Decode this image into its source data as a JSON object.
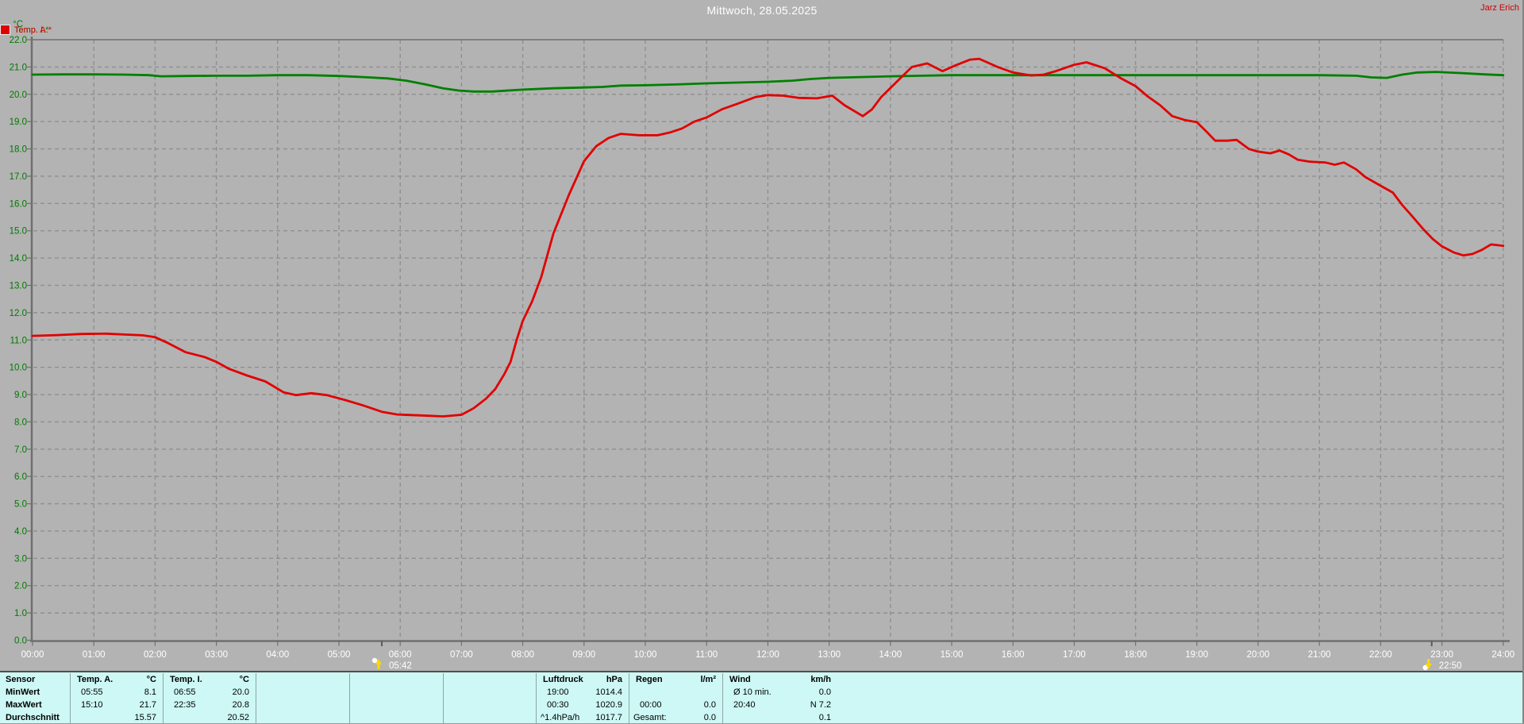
{
  "header": {
    "title": "Mittwoch, 28.05.2025",
    "author": "Jarz Erich"
  },
  "legend": [
    {
      "label": "Temp. I.*",
      "color": "#008000"
    },
    {
      "label": "Temp. A.*",
      "color": "#e10000"
    }
  ],
  "colors": {
    "background": "#b3b3b3",
    "grid": "#8f8f8f",
    "axis": "#6f6f6f",
    "y_labels": "#007800",
    "x_labels": "#ffffff",
    "title": "#ffffff",
    "author": "#cc0000",
    "table_background": "#cdf8f5",
    "marker_yellow": "#ffd700"
  },
  "chart_data": {
    "type": "line",
    "title": "Mittwoch, 28.05.2025",
    "ylabel": "°C",
    "ylim": [
      0,
      22
    ],
    "xlim_hours": [
      0,
      24
    ],
    "grid": "dashed",
    "y_unit_label": "°C",
    "y_tick_labels": [
      "22.0",
      "21.0",
      "20.0",
      "19.0",
      "18.0",
      "17.0",
      "16.0",
      "15.0",
      "14.0",
      "13.0",
      "12.0",
      "11.0",
      "10.0",
      "9.0",
      "8.0",
      "7.0",
      "6.0",
      "5.0",
      "4.0",
      "3.0",
      "2.0",
      "1.0",
      "0.0"
    ],
    "x_ticks": [
      "00:00",
      "01:00",
      "02:00",
      "03:00",
      "04:00",
      "05:00",
      "06:00",
      "07:00",
      "08:00",
      "09:00",
      "10:00",
      "11:00",
      "12:00",
      "13:00",
      "14:00",
      "15:00",
      "16:00",
      "17:00",
      "18:00",
      "19:00",
      "20:00",
      "21:00",
      "22:00",
      "23:00",
      "24:00"
    ],
    "series": [
      {
        "name": "Temp. I.*",
        "color": "#008000",
        "points": [
          [
            0,
            20.72
          ],
          [
            0.5,
            20.73
          ],
          [
            1,
            20.73
          ],
          [
            1.5,
            20.72
          ],
          [
            1.9,
            20.7
          ],
          [
            2.1,
            20.66
          ],
          [
            2.5,
            20.67
          ],
          [
            3,
            20.68
          ],
          [
            3.5,
            20.68
          ],
          [
            4,
            20.7
          ],
          [
            4.5,
            20.7
          ],
          [
            5,
            20.67
          ],
          [
            5.4,
            20.63
          ],
          [
            5.8,
            20.58
          ],
          [
            6.1,
            20.5
          ],
          [
            6.4,
            20.37
          ],
          [
            6.7,
            20.22
          ],
          [
            6.95,
            20.14
          ],
          [
            7.2,
            20.1
          ],
          [
            7.5,
            20.1
          ],
          [
            7.7,
            20.13
          ],
          [
            8,
            20.17
          ],
          [
            8.5,
            20.22
          ],
          [
            9,
            20.25
          ],
          [
            9.3,
            20.27
          ],
          [
            9.6,
            20.32
          ],
          [
            10,
            20.33
          ],
          [
            10.5,
            20.36
          ],
          [
            11,
            20.4
          ],
          [
            11.5,
            20.43
          ],
          [
            12,
            20.46
          ],
          [
            12.4,
            20.5
          ],
          [
            12.7,
            20.56
          ],
          [
            13,
            20.6
          ],
          [
            13.5,
            20.63
          ],
          [
            14,
            20.66
          ],
          [
            14.5,
            20.68
          ],
          [
            15,
            20.7
          ],
          [
            16,
            20.7
          ],
          [
            17,
            20.7
          ],
          [
            18,
            20.7
          ],
          [
            19,
            20.7
          ],
          [
            20,
            20.7
          ],
          [
            21,
            20.7
          ],
          [
            21.6,
            20.68
          ],
          [
            21.85,
            20.62
          ],
          [
            22.1,
            20.6
          ],
          [
            22.35,
            20.72
          ],
          [
            22.6,
            20.8
          ],
          [
            22.9,
            20.82
          ],
          [
            23.3,
            20.78
          ],
          [
            23.7,
            20.73
          ],
          [
            24,
            20.7
          ]
        ]
      },
      {
        "name": "Temp. A.*",
        "color": "#e10000",
        "points": [
          [
            0,
            11.15
          ],
          [
            0.4,
            11.18
          ],
          [
            0.8,
            11.22
          ],
          [
            1.2,
            11.23
          ],
          [
            1.5,
            11.2
          ],
          [
            1.8,
            11.17
          ],
          [
            2,
            11.1
          ],
          [
            2.2,
            10.9
          ],
          [
            2.5,
            10.55
          ],
          [
            2.8,
            10.38
          ],
          [
            3,
            10.2
          ],
          [
            3.2,
            9.95
          ],
          [
            3.5,
            9.7
          ],
          [
            3.8,
            9.48
          ],
          [
            4.1,
            9.08
          ],
          [
            4.3,
            8.98
          ],
          [
            4.55,
            9.05
          ],
          [
            4.8,
            8.98
          ],
          [
            5.1,
            8.8
          ],
          [
            5.4,
            8.6
          ],
          [
            5.7,
            8.37
          ],
          [
            5.95,
            8.27
          ],
          [
            6.3,
            8.24
          ],
          [
            6.7,
            8.2
          ],
          [
            7,
            8.26
          ],
          [
            7.2,
            8.5
          ],
          [
            7.4,
            8.85
          ],
          [
            7.55,
            9.2
          ],
          [
            7.7,
            9.75
          ],
          [
            7.8,
            10.2
          ],
          [
            7.9,
            11
          ],
          [
            8,
            11.7
          ],
          [
            8.15,
            12.4
          ],
          [
            8.3,
            13.3
          ],
          [
            8.5,
            14.9
          ],
          [
            8.75,
            16.3
          ],
          [
            9,
            17.55
          ],
          [
            9.2,
            18.1
          ],
          [
            9.4,
            18.4
          ],
          [
            9.6,
            18.55
          ],
          [
            9.9,
            18.5
          ],
          [
            10.2,
            18.5
          ],
          [
            10.4,
            18.6
          ],
          [
            10.6,
            18.75
          ],
          [
            10.8,
            19
          ],
          [
            11,
            19.15
          ],
          [
            11.25,
            19.45
          ],
          [
            11.5,
            19.65
          ],
          [
            11.8,
            19.9
          ],
          [
            12,
            19.97
          ],
          [
            12.25,
            19.95
          ],
          [
            12.5,
            19.87
          ],
          [
            12.8,
            19.85
          ],
          [
            13.05,
            19.95
          ],
          [
            13.25,
            19.6
          ],
          [
            13.55,
            19.2
          ],
          [
            13.7,
            19.45
          ],
          [
            13.85,
            19.9
          ],
          [
            14.1,
            20.45
          ],
          [
            14.35,
            21
          ],
          [
            14.6,
            21.13
          ],
          [
            14.85,
            20.85
          ],
          [
            15.05,
            21.05
          ],
          [
            15.3,
            21.27
          ],
          [
            15.45,
            21.3
          ],
          [
            15.75,
            21
          ],
          [
            16,
            20.8
          ],
          [
            16.3,
            20.69
          ],
          [
            16.5,
            20.72
          ],
          [
            16.7,
            20.85
          ],
          [
            17,
            21.08
          ],
          [
            17.2,
            21.17
          ],
          [
            17.5,
            20.95
          ],
          [
            17.75,
            20.6
          ],
          [
            18,
            20.3
          ],
          [
            18.2,
            19.92
          ],
          [
            18.4,
            19.6
          ],
          [
            18.6,
            19.2
          ],
          [
            18.8,
            19.06
          ],
          [
            19,
            18.98
          ],
          [
            19.15,
            18.65
          ],
          [
            19.3,
            18.3
          ],
          [
            19.5,
            18.3
          ],
          [
            19.65,
            18.33
          ],
          [
            19.85,
            18
          ],
          [
            20,
            17.9
          ],
          [
            20.2,
            17.84
          ],
          [
            20.35,
            17.94
          ],
          [
            20.5,
            17.8
          ],
          [
            20.65,
            17.6
          ],
          [
            20.85,
            17.53
          ],
          [
            21.1,
            17.5
          ],
          [
            21.25,
            17.42
          ],
          [
            21.4,
            17.5
          ],
          [
            21.6,
            17.25
          ],
          [
            21.75,
            16.97
          ],
          [
            22,
            16.65
          ],
          [
            22.2,
            16.4
          ],
          [
            22.35,
            15.95
          ],
          [
            22.5,
            15.57
          ],
          [
            22.7,
            15.05
          ],
          [
            22.85,
            14.7
          ],
          [
            23,
            14.43
          ],
          [
            23.2,
            14.2
          ],
          [
            23.35,
            14.1
          ],
          [
            23.5,
            14.15
          ],
          [
            23.65,
            14.3
          ],
          [
            23.8,
            14.5
          ],
          [
            24,
            14.45
          ]
        ]
      }
    ],
    "markers": [
      {
        "label": "05:42",
        "hour": 5.7,
        "type": "sunrise"
      },
      {
        "label": "22:50",
        "hour": 22.833,
        "type": "sunset"
      }
    ]
  },
  "table": {
    "row_labels": [
      "Sensor",
      "MinWert",
      "MaxWert",
      "Durchschnitt"
    ],
    "columns": [
      {
        "header": "Temp. A.",
        "unit": "°C",
        "rows": [
          [
            "05:55",
            "8.1"
          ],
          [
            "15:10",
            "21.7"
          ],
          [
            "",
            "15.57"
          ]
        ]
      },
      {
        "header": "Temp. I.",
        "unit": "°C",
        "rows": [
          [
            "06:55",
            "20.0"
          ],
          [
            "22:35",
            "20.8"
          ],
          [
            "",
            "20.52"
          ]
        ]
      },
      {
        "header": "",
        "unit": "",
        "rows": [
          [
            "",
            ""
          ],
          [
            "",
            ""
          ],
          [
            "",
            ""
          ]
        ]
      },
      {
        "header": "",
        "unit": "",
        "rows": [
          [
            "",
            ""
          ],
          [
            "",
            ""
          ],
          [
            "",
            ""
          ]
        ]
      },
      {
        "header": "",
        "unit": "",
        "rows": [
          [
            "",
            ""
          ],
          [
            "",
            ""
          ],
          [
            "",
            ""
          ]
        ]
      },
      {
        "header": "Luftdruck",
        "unit": "hPa",
        "rows": [
          [
            "19:00",
            "1014.4"
          ],
          [
            "00:30",
            "1020.9"
          ],
          [
            "^1.4hPa/h",
            "1017.7"
          ]
        ]
      },
      {
        "header": "Regen",
        "unit": "l/m²",
        "rows": [
          [
            "",
            ""
          ],
          [
            "00:00",
            "0.0"
          ],
          [
            "Gesamt:",
            "0.0"
          ]
        ]
      },
      {
        "header": "Wind",
        "unit": "km/h",
        "rows": [
          [
            "Ø 10 min.",
            "0.0"
          ],
          [
            "20:40",
            "N 7.2"
          ],
          [
            "",
            "0.1"
          ]
        ]
      }
    ]
  }
}
